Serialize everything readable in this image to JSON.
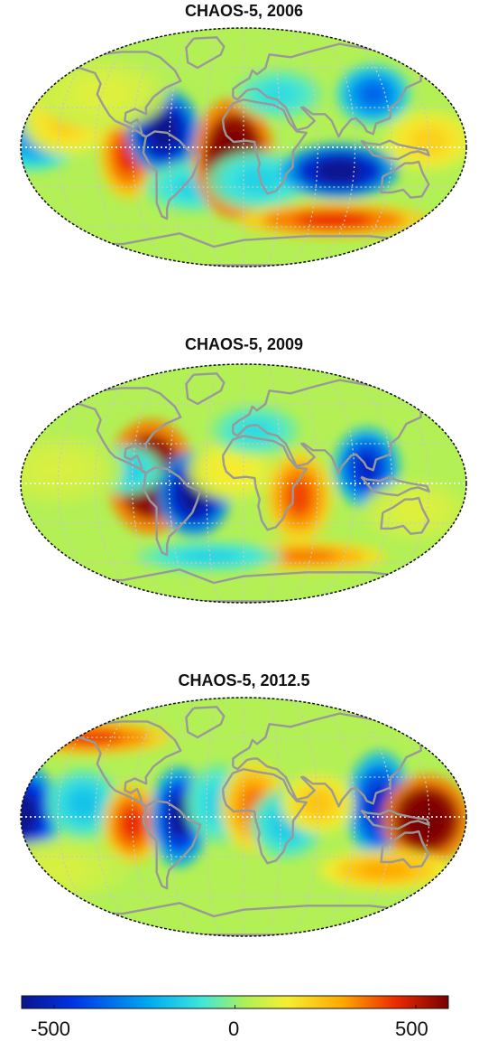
{
  "panels": [
    {
      "title": "CHAOS-5, 2006",
      "anomalies": [
        {
          "lon": -170,
          "lat": 5,
          "value": -220,
          "rx": 12,
          "ry": 12
        },
        {
          "lon": -145,
          "lat": 20,
          "value": 180,
          "rx": 12,
          "ry": 14
        },
        {
          "lon": -93,
          "lat": -5,
          "value": 380,
          "rx": 8,
          "ry": 18
        },
        {
          "lon": -65,
          "lat": 12,
          "value": -560,
          "rx": 10,
          "ry": 17
        },
        {
          "lon": -40,
          "lat": -30,
          "value": -120,
          "rx": 14,
          "ry": 10
        },
        {
          "lon": -8,
          "lat": -8,
          "value": 620,
          "rx": 11,
          "ry": 24
        },
        {
          "lon": 12,
          "lat": -25,
          "value": -120,
          "rx": 14,
          "ry": 12
        },
        {
          "lon": 30,
          "lat": 40,
          "value": -100,
          "rx": 12,
          "ry": 10
        },
        {
          "lon": 78,
          "lat": -18,
          "value": -560,
          "rx": 16,
          "ry": 11
        },
        {
          "lon": 80,
          "lat": -55,
          "value": 380,
          "rx": 26,
          "ry": 7
        },
        {
          "lon": 110,
          "lat": 40,
          "value": -300,
          "rx": 10,
          "ry": 12
        },
        {
          "lon": 150,
          "lat": 5,
          "value": 180,
          "rx": 12,
          "ry": 12
        },
        {
          "lon": -120,
          "lat": 40,
          "value": 90,
          "rx": 18,
          "ry": 14
        }
      ]
    },
    {
      "title": "CHAOS-5, 2009",
      "anomalies": [
        {
          "lon": -75,
          "lat": 5,
          "value": 620,
          "rx": 12,
          "ry": 23
        },
        {
          "lon": -40,
          "lat": -8,
          "value": -560,
          "rx": 10,
          "ry": 17
        },
        {
          "lon": -95,
          "lat": 10,
          "value": -130,
          "rx": 10,
          "ry": 10
        },
        {
          "lon": -10,
          "lat": 10,
          "value": 130,
          "rx": 12,
          "ry": 12
        },
        {
          "lon": 10,
          "lat": 40,
          "value": -100,
          "rx": 12,
          "ry": 10
        },
        {
          "lon": 45,
          "lat": -10,
          "value": 350,
          "rx": 9,
          "ry": 18
        },
        {
          "lon": 100,
          "lat": 12,
          "value": -420,
          "rx": 9,
          "ry": 16
        },
        {
          "lon": 55,
          "lat": -55,
          "value": 300,
          "rx": 22,
          "ry": 6
        },
        {
          "lon": -150,
          "lat": 10,
          "value": 80,
          "rx": 18,
          "ry": 14
        },
        {
          "lon": 140,
          "lat": -20,
          "value": 90,
          "rx": 14,
          "ry": 12
        },
        {
          "lon": -30,
          "lat": -55,
          "value": -120,
          "rx": 20,
          "ry": 6
        }
      ]
    },
    {
      "title": "CHAOS-5, 2012.5",
      "anomalies": [
        {
          "lon": -178,
          "lat": 2,
          "value": -520,
          "rx": 10,
          "ry": 20
        },
        {
          "lon": -140,
          "lat": 60,
          "value": 360,
          "rx": 22,
          "ry": 7
        },
        {
          "lon": -130,
          "lat": 10,
          "value": -150,
          "rx": 10,
          "ry": 14
        },
        {
          "lon": -90,
          "lat": -5,
          "value": 380,
          "rx": 8,
          "ry": 16
        },
        {
          "lon": -52,
          "lat": 0,
          "value": -480,
          "rx": 8,
          "ry": 20
        },
        {
          "lon": -20,
          "lat": 10,
          "value": -120,
          "rx": 9,
          "ry": 16
        },
        {
          "lon": 8,
          "lat": 8,
          "value": 300,
          "rx": 9,
          "ry": 18
        },
        {
          "lon": 35,
          "lat": -5,
          "value": -140,
          "rx": 10,
          "ry": 14
        },
        {
          "lon": 110,
          "lat": 8,
          "value": -420,
          "rx": 9,
          "ry": 22
        },
        {
          "lon": 148,
          "lat": -2,
          "value": 620,
          "rx": 12,
          "ry": 18
        },
        {
          "lon": 120,
          "lat": -40,
          "value": 250,
          "rx": 18,
          "ry": 8
        },
        {
          "lon": 60,
          "lat": 10,
          "value": 200,
          "rx": 10,
          "ry": 12
        },
        {
          "lon": -160,
          "lat": -40,
          "value": 80,
          "rx": 20,
          "ry": 12
        }
      ]
    }
  ],
  "colorbar": {
    "min": -500,
    "max": 500,
    "tick_labels": [
      "-500",
      "0",
      "500"
    ],
    "tick_values": [
      -500,
      0,
      500
    ]
  },
  "style": {
    "background_value": 30,
    "coast_color": "#999999",
    "grid_color": "#c8c8c8"
  }
}
